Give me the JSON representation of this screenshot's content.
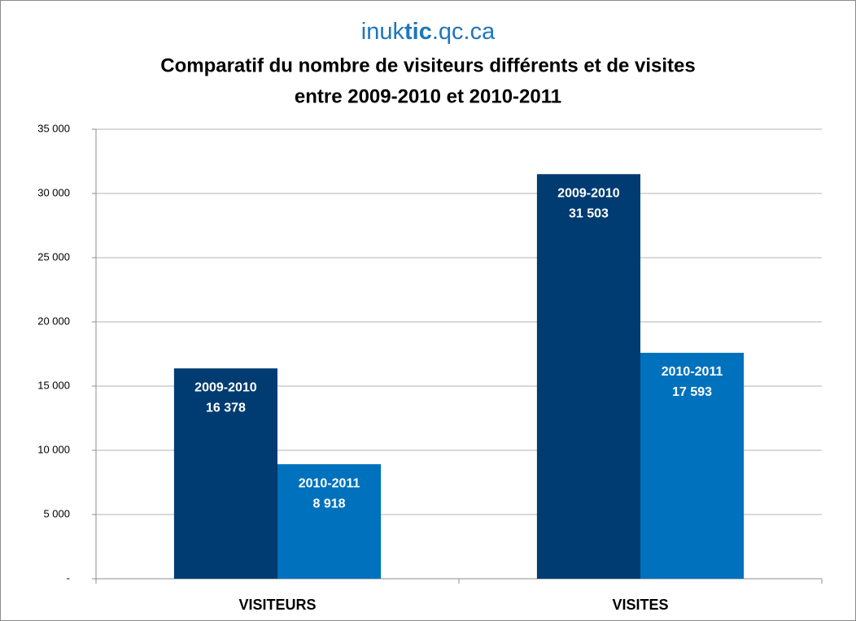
{
  "chart_data": {
    "type": "bar",
    "brand": [
      "inuk",
      "tic",
      ".qc.ca"
    ],
    "title": [
      "Comparatif du nombre de visiteurs différents et de visites",
      "entre 2009-2010 et 2010-2011"
    ],
    "categories": [
      "VISITEURS",
      "VISITES"
    ],
    "series": [
      {
        "name": "2009-2010",
        "color": "#003b71",
        "values": [
          16378,
          31503
        ],
        "value_labels": [
          "16 378",
          "31 503"
        ]
      },
      {
        "name": "2010-2011",
        "color": "#0071bd",
        "values": [
          8918,
          17593
        ],
        "value_labels": [
          "8 918",
          "17 593"
        ]
      }
    ],
    "ylim": [
      0,
      35000
    ],
    "yticks": [
      {
        "value": 0,
        "label": "-"
      },
      {
        "value": 5000,
        "label": "5 000"
      },
      {
        "value": 10000,
        "label": "10 000"
      },
      {
        "value": 15000,
        "label": "15 000"
      },
      {
        "value": 20000,
        "label": "20 000"
      },
      {
        "value": 25000,
        "label": "25 000"
      },
      {
        "value": 30000,
        "label": "30 000"
      },
      {
        "value": 35000,
        "label": "35 000"
      }
    ],
    "grid": true
  }
}
